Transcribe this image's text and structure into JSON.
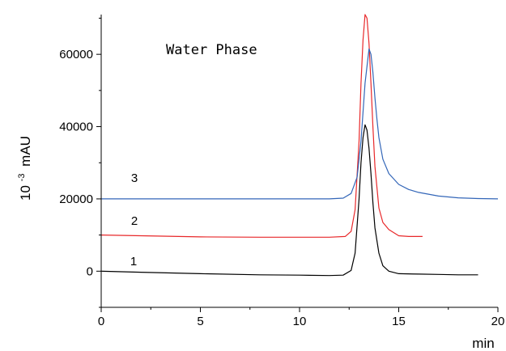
{
  "chart_data": {
    "type": "line",
    "title": "",
    "annotation": "Water Phase",
    "xlabel": "min",
    "ylabel_main": "10",
    "ylabel_sup": "-3",
    "ylabel_unit": "mAU",
    "xlim": [
      0,
      20
    ],
    "ylim": [
      -10000,
      71000
    ],
    "xticks": [
      0,
      5,
      10,
      15,
      20
    ],
    "yticks": [
      0,
      20000,
      40000,
      60000
    ],
    "xtick_labels": [
      "0",
      "5",
      "10",
      "15",
      "20"
    ],
    "ytick_labels": [
      "0",
      "20000",
      "40000",
      "60000"
    ],
    "grid": false,
    "series": [
      {
        "label": "1",
        "color": "#000000",
        "x": [
          0,
          2,
          5,
          8,
          10,
          11.5,
          12.2,
          12.6,
          12.8,
          13.0,
          13.1,
          13.2,
          13.3,
          13.4,
          13.5,
          13.6,
          13.7,
          13.8,
          14.0,
          14.2,
          14.5,
          15.0,
          16,
          17,
          18,
          19.0
        ],
        "y": [
          0,
          -300,
          -700,
          -1000,
          -1100,
          -1200,
          -1100,
          200,
          5000,
          20000,
          30000,
          37000,
          40500,
          39000,
          34000,
          27000,
          19000,
          12000,
          5000,
          1500,
          0,
          -700,
          -800,
          -900,
          -1000,
          -1000
        ]
      },
      {
        "label": "2",
        "color": "#e8282a",
        "x": [
          0,
          2,
          5,
          8,
          10,
          11.5,
          12.3,
          12.6,
          12.8,
          13.0,
          13.1,
          13.2,
          13.3,
          13.4,
          13.5,
          13.6,
          13.7,
          13.8,
          14.0,
          14.2,
          14.5,
          15.0,
          15.5,
          16.2
        ],
        "y": [
          10000,
          9800,
          9500,
          9400,
          9400,
          9400,
          9600,
          11000,
          17000,
          36000,
          52000,
          64000,
          71000,
          70000,
          63000,
          52000,
          40000,
          29000,
          17500,
          13500,
          11500,
          9800,
          9600,
          9600
        ]
      },
      {
        "label": "3",
        "color": "#3366b8",
        "x": [
          0,
          5,
          10,
          11.5,
          12.2,
          12.6,
          12.9,
          13.1,
          13.3,
          13.5,
          13.6,
          13.7,
          13.8,
          13.9,
          14.0,
          14.2,
          14.5,
          15.0,
          15.5,
          16.0,
          17.0,
          18.0,
          19.0,
          20.0
        ],
        "y": [
          20000,
          20000,
          20000,
          20000,
          20200,
          21500,
          26000,
          36000,
          52000,
          61500,
          60000,
          55000,
          48000,
          42000,
          37000,
          31000,
          27000,
          24000,
          22600,
          21800,
          20800,
          20300,
          20100,
          20000
        ]
      }
    ]
  }
}
